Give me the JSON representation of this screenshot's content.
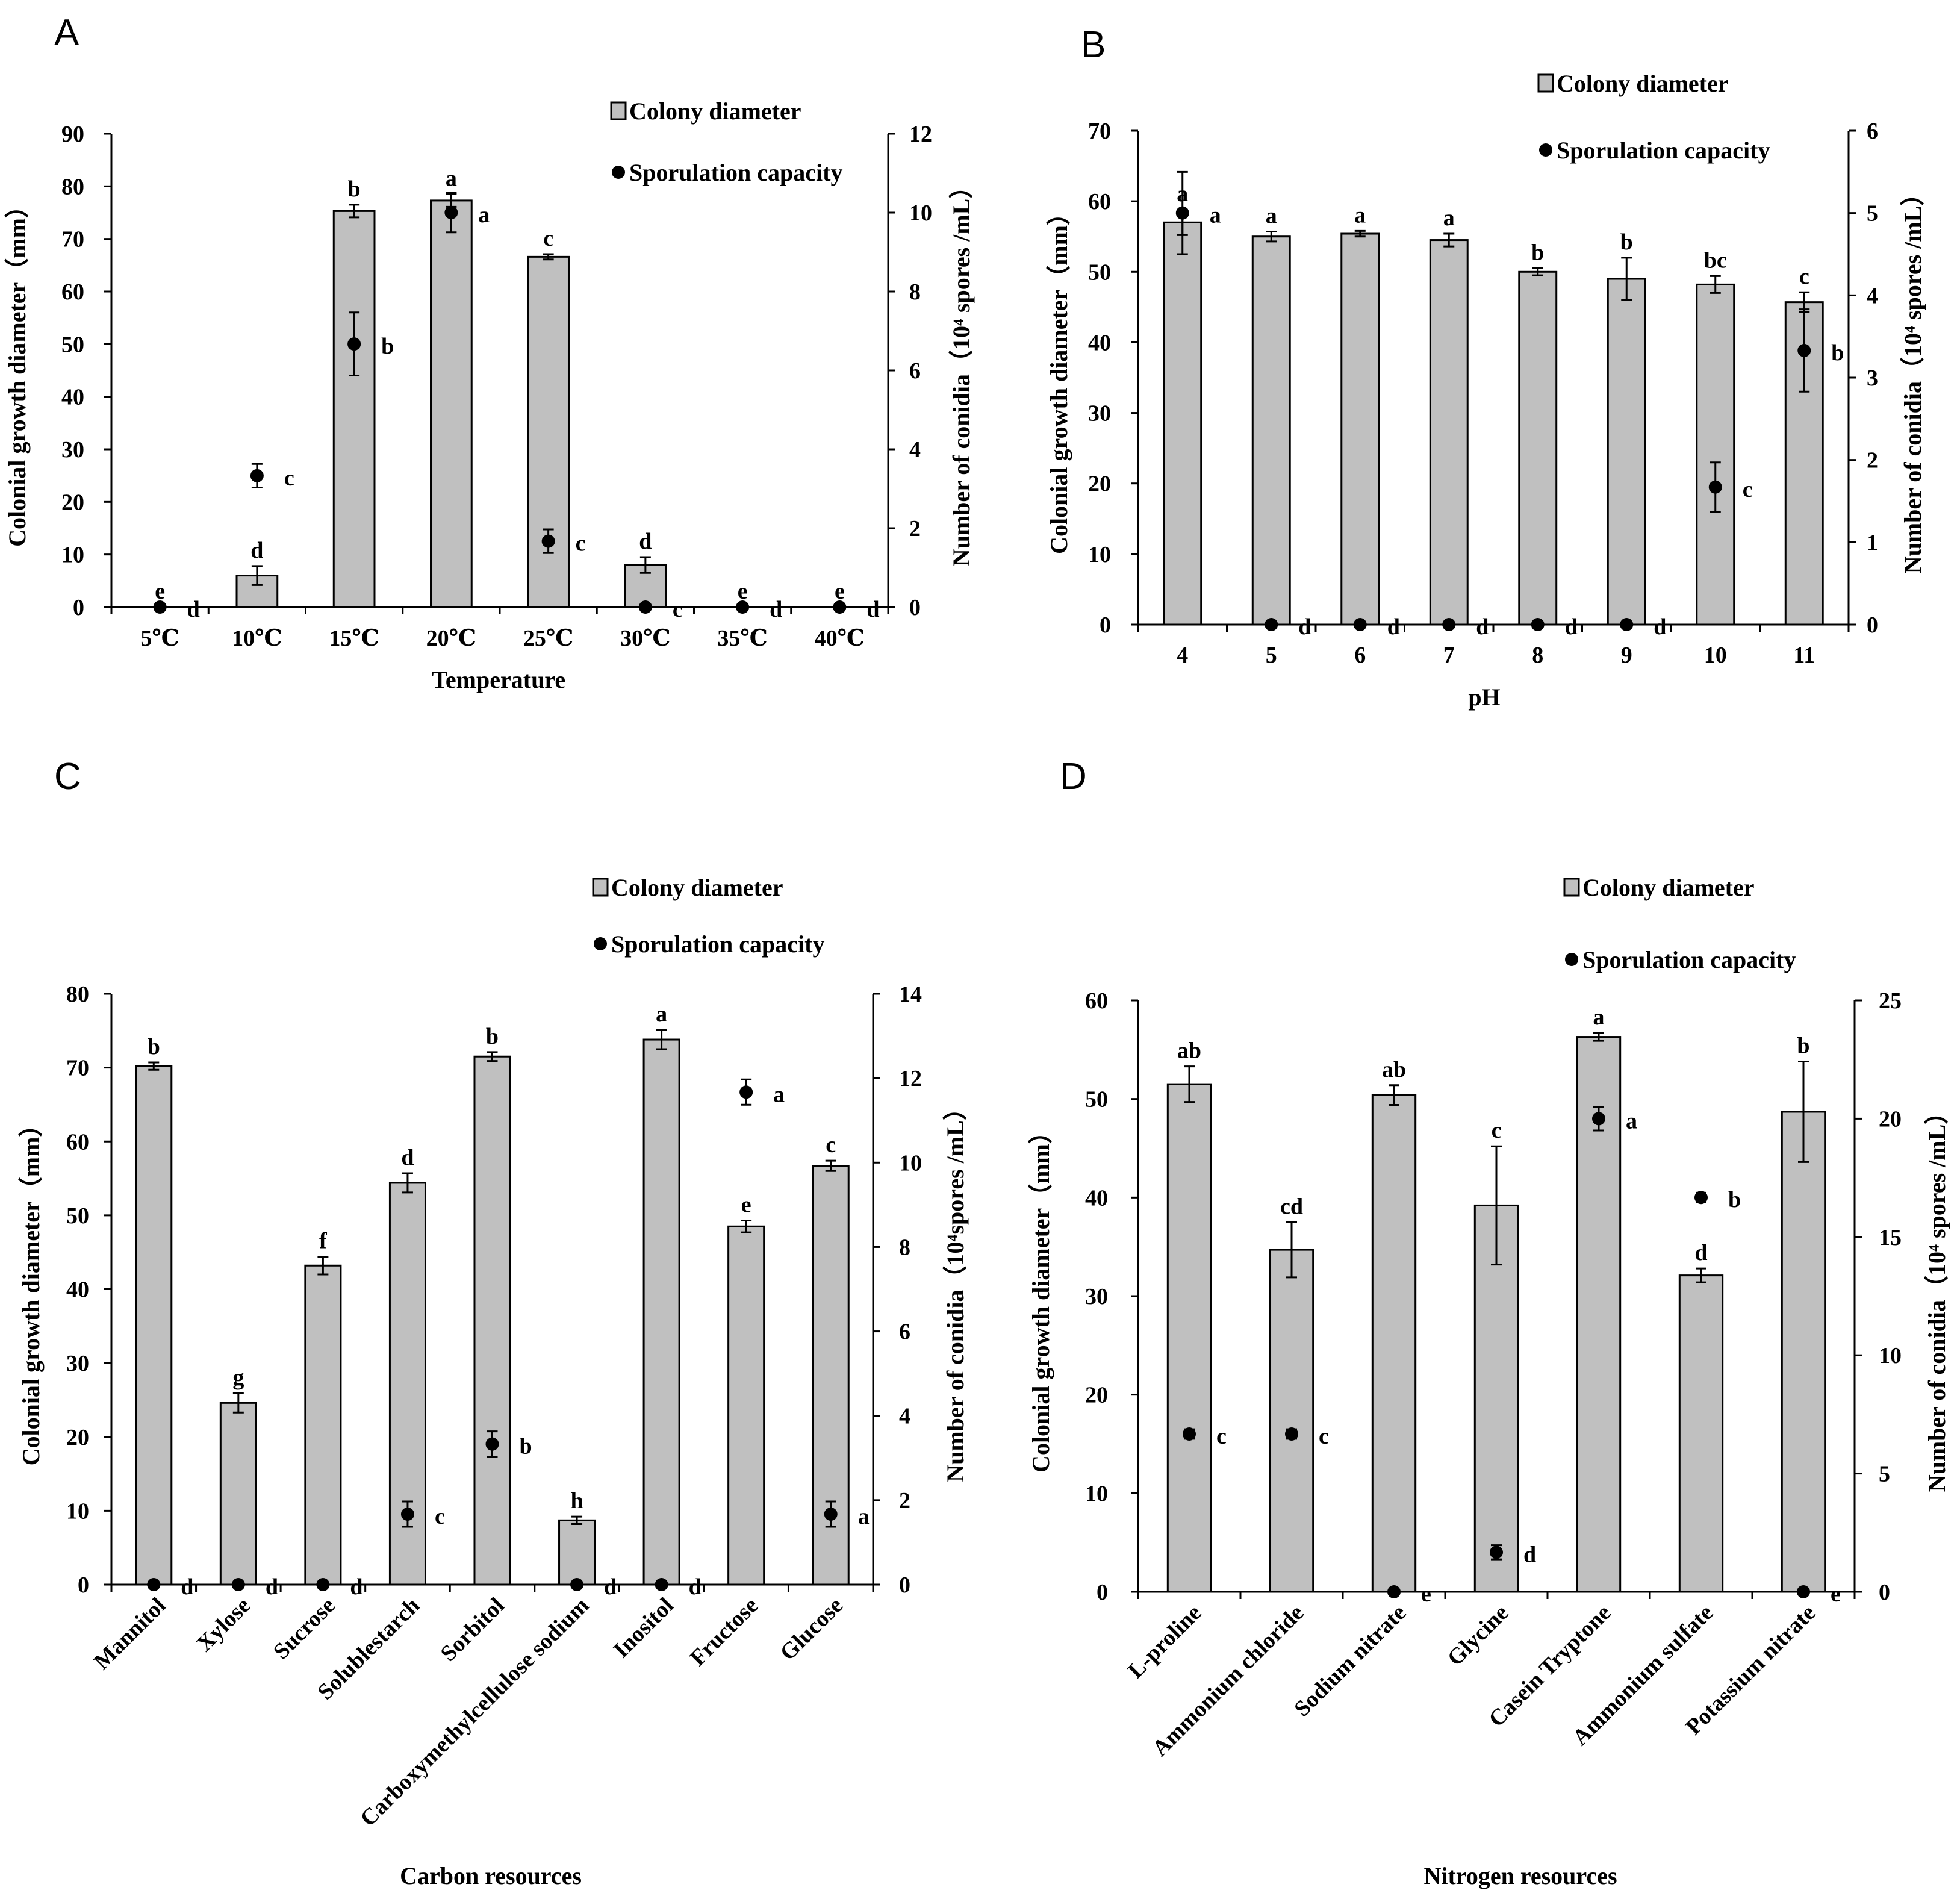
{
  "chart_data": [
    {
      "panel": "A",
      "type": "bar",
      "xlabel": "Temperature",
      "ylabel": "Colonial growth diameter（mm）",
      "y2label": "Number of conidia（10⁴ spores /mL）",
      "ylim": [
        0,
        90
      ],
      "yticks": [
        0,
        10,
        20,
        30,
        40,
        50,
        60,
        70,
        80,
        90
      ],
      "y2lim": [
        0,
        12
      ],
      "y2ticks": [
        0,
        2,
        4,
        6,
        8,
        10,
        12
      ],
      "categories": [
        "5℃",
        "10℃",
        "15℃",
        "20℃",
        "25℃",
        "30℃",
        "35℃",
        "40℃"
      ],
      "legend": {
        "bar": "Colony diameter",
        "dot": "Sporulation capacity"
      },
      "series": [
        {
          "name": "Colony diameter",
          "kind": "bar",
          "axis": "left",
          "values": [
            0,
            6,
            75.3,
            77.3,
            66.6,
            8,
            0,
            0
          ],
          "errors": [
            0,
            1.8,
            1.2,
            1.2,
            0.5,
            1.5,
            0,
            0
          ],
          "letters": [
            "e",
            "d",
            "b",
            "a",
            "c",
            "d",
            "e",
            "e"
          ]
        },
        {
          "name": "Sporulation capacity",
          "kind": "dot",
          "axis": "right",
          "values": [
            0,
            3.33,
            6.67,
            10.0,
            1.67,
            0,
            0,
            0
          ],
          "errors": [
            0,
            0.3,
            0.8,
            0.5,
            0.3,
            0,
            0,
            0
          ],
          "letters": [
            "d",
            "c",
            "b",
            "a",
            "c",
            "c",
            "d",
            "d"
          ]
        }
      ]
    },
    {
      "panel": "B",
      "type": "bar",
      "xlabel": "pH",
      "ylabel": "Colonial growth diameter（mm）",
      "y2label": "Number of conidia（10⁴ spores /mL）",
      "ylim": [
        0,
        70
      ],
      "yticks": [
        0,
        10,
        20,
        30,
        40,
        50,
        60,
        70
      ],
      "y2lim": [
        0,
        6
      ],
      "y2ticks": [
        0,
        1,
        2,
        3,
        4,
        5,
        6
      ],
      "categories": [
        "4",
        "5",
        "6",
        "7",
        "8",
        "9",
        "10",
        "11"
      ],
      "legend": {
        "bar": "Colony diameter",
        "dot": "Sporulation capacity"
      },
      "series": [
        {
          "name": "Colony diameter",
          "kind": "bar",
          "axis": "left",
          "values": [
            57,
            55,
            55.4,
            54.5,
            50,
            49,
            48.2,
            45.7
          ],
          "errors": [
            1.8,
            0.7,
            0.4,
            0.9,
            0.5,
            3,
            1.2,
            1.4
          ],
          "letters": [
            "a",
            "a",
            "a",
            "a",
            "b",
            "b",
            "bc",
            "c"
          ]
        },
        {
          "name": "Sporulation capacity",
          "kind": "dot",
          "axis": "right",
          "values": [
            5.0,
            0,
            0,
            0,
            0,
            0,
            1.67,
            3.33
          ],
          "errors": [
            0.5,
            0,
            0,
            0,
            0,
            0,
            0.3,
            0.5
          ],
          "letters": [
            "a",
            "d",
            "d",
            "d",
            "d",
            "d",
            "c",
            "b"
          ]
        }
      ]
    },
    {
      "panel": "C",
      "type": "bar",
      "xlabel": "Carbon resources",
      "ylabel": "Colonial growth diameter（mm）",
      "y2label": "Number of conidia（10⁴spores /mL）",
      "ylim": [
        0,
        80
      ],
      "yticks": [
        0,
        10,
        20,
        30,
        40,
        50,
        60,
        70,
        80
      ],
      "y2lim": [
        0,
        14
      ],
      "y2ticks": [
        0,
        2,
        4,
        6,
        8,
        10,
        12,
        14
      ],
      "categories": [
        "Mannitol",
        "Xylose",
        "Sucrose",
        "Solublestarch",
        "Sorbitol",
        "Carboxymethylcellulose sodium",
        "Inositol",
        "Fructose",
        "Glucose"
      ],
      "legend": {
        "bar": "Colony diameter",
        "dot": "Sporulation capacity"
      },
      "series": [
        {
          "name": "Colony diameter",
          "kind": "bar",
          "axis": "left",
          "values": [
            70.2,
            24.6,
            43.2,
            54.4,
            71.5,
            8.7,
            73.8,
            48.5,
            56.7
          ],
          "errors": [
            0.5,
            1.3,
            1.2,
            1.3,
            0.6,
            0.5,
            1.3,
            0.8,
            0.7
          ],
          "letters": [
            "b",
            "g",
            "f",
            "d",
            "b",
            "h",
            "a",
            "e",
            "c"
          ]
        },
        {
          "name": "Sporulation capacity",
          "kind": "dot",
          "axis": "right",
          "values": [
            0,
            0,
            0,
            1.67,
            3.33,
            0,
            0,
            11.67,
            1.67
          ],
          "errors": [
            0,
            0,
            0,
            0.3,
            0.3,
            0,
            0,
            0.3,
            0.3
          ],
          "letters": [
            "d",
            "d",
            "d",
            "c",
            "b",
            "d",
            "d",
            "a",
            "a"
          ]
        }
      ]
    },
    {
      "panel": "D",
      "type": "bar",
      "xlabel": "Nitrogen resources",
      "ylabel": "Colonial growth diameter（mm）",
      "y2label": "Number of conidia（10⁴ spores /mL）",
      "ylim": [
        0,
        60
      ],
      "yticks": [
        0,
        10,
        20,
        30,
        40,
        50,
        60
      ],
      "y2lim": [
        0,
        25
      ],
      "y2ticks": [
        0,
        5,
        10,
        15,
        20,
        25
      ],
      "categories": [
        "L-proline",
        "Ammonium chloride",
        "Sodium nitrate",
        "Glycine",
        "Casein Tryptone",
        "Ammonium sulfate",
        "Potassium nitrate"
      ],
      "legend": {
        "bar": "Colony diameter",
        "dot": "Sporulation capacity"
      },
      "series": [
        {
          "name": "Colony diameter",
          "kind": "bar",
          "axis": "left",
          "values": [
            51.5,
            34.7,
            50.4,
            39.2,
            56.3,
            32.1,
            48.7
          ],
          "errors": [
            1.8,
            2.8,
            1.0,
            6.0,
            0.4,
            0.7,
            5.1
          ],
          "letters": [
            "ab",
            "cd",
            "ab",
            "c",
            "a",
            "d",
            "b"
          ]
        },
        {
          "name": "Sporulation capacity",
          "kind": "dot",
          "axis": "right",
          "values": [
            6.67,
            6.67,
            0,
            1.67,
            20.0,
            16.67,
            0
          ],
          "errors": [
            0.2,
            0.2,
            0,
            0.3,
            0.5,
            0.2,
            0
          ],
          "letters": [
            "c",
            "c",
            "e",
            "d",
            "a",
            "b",
            "e"
          ]
        }
      ]
    }
  ]
}
